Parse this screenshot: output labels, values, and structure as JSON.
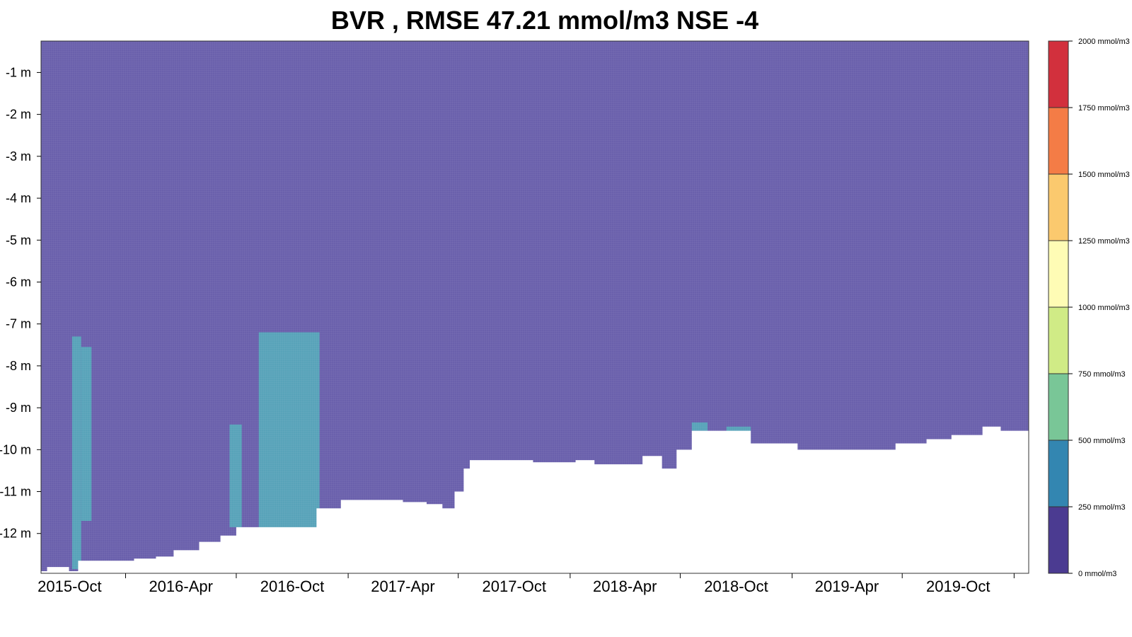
{
  "chart_data": {
    "type": "heatmap",
    "title": "BVR , RMSE 47.21 mmol/m3 NSE -4",
    "xlabel": "",
    "ylabel": "",
    "x_ticks": [
      "2015-Oct",
      "2016-Apr",
      "2016-Oct",
      "2017-Apr",
      "2017-Oct",
      "2018-Apr",
      "2018-Oct",
      "2019-Apr",
      "2019-Oct"
    ],
    "y_ticks": [
      "-1 m",
      "-2 m",
      "-3 m",
      "-4 m",
      "-5 m",
      "-6 m",
      "-7 m",
      "-8 m",
      "-9 m",
      "-10 m",
      "-11 m",
      "-12 m"
    ],
    "y_tick_values": [
      -1,
      -2,
      -3,
      -4,
      -5,
      -6,
      -7,
      -8,
      -9,
      -10,
      -11,
      -12
    ],
    "ylim": [
      -12.95,
      -0.25
    ],
    "xlim": [
      "2015-08-15",
      "2020-01-25"
    ],
    "colorbar": {
      "levels": [
        {
          "label": "0 mmol/m3",
          "color": "#4b3b91"
        },
        {
          "label": "250 mmol/m3",
          "color": "#3386b1"
        },
        {
          "label": "500 mmol/m3",
          "color": "#79c697"
        },
        {
          "label": "750 mmol/m3",
          "color": "#d0eb86"
        },
        {
          "label": "1000 mmol/m3",
          "color": "#fefcb5"
        },
        {
          "label": "1250 mmol/m3",
          "color": "#fbc96e"
        },
        {
          "label": "1500 mmol/m3",
          "color": "#f47c46"
        },
        {
          "label": "1750 mmol/m3",
          "color": "#d2303d"
        },
        {
          "label": "2000 mmol/m3",
          "color": ""
        }
      ]
    },
    "background_color": "#6a60ac",
    "patch_color": "#58a3b9",
    "bottom_depth_profile": [
      {
        "date": "2015-08-15",
        "depth": -12.9
      },
      {
        "date": "2015-08-25",
        "depth": -12.8
      },
      {
        "date": "2015-09-30",
        "depth": -12.9
      },
      {
        "date": "2015-10-15",
        "depth": -12.65
      },
      {
        "date": "2015-12-01",
        "depth": -12.65
      },
      {
        "date": "2016-01-15",
        "depth": -12.6
      },
      {
        "date": "2016-02-20",
        "depth": -12.55
      },
      {
        "date": "2016-03-20",
        "depth": -12.4
      },
      {
        "date": "2016-05-01",
        "depth": -12.2
      },
      {
        "date": "2016-06-05",
        "depth": -12.05
      },
      {
        "date": "2016-07-01",
        "depth": -11.85
      },
      {
        "date": "2016-10-15",
        "depth": -11.85
      },
      {
        "date": "2016-11-10",
        "depth": -11.4
      },
      {
        "date": "2016-12-20",
        "depth": -11.2
      },
      {
        "date": "2017-04-01",
        "depth": -11.25
      },
      {
        "date": "2017-05-10",
        "depth": -11.3
      },
      {
        "date": "2017-06-05",
        "depth": -11.4
      },
      {
        "date": "2017-06-25",
        "depth": -11.0
      },
      {
        "date": "2017-07-10",
        "depth": -10.45
      },
      {
        "date": "2017-07-20",
        "depth": -10.25
      },
      {
        "date": "2017-10-10",
        "depth": -10.25
      },
      {
        "date": "2017-11-01",
        "depth": -10.3
      },
      {
        "date": "2018-01-10",
        "depth": -10.25
      },
      {
        "date": "2018-02-10",
        "depth": -10.35
      },
      {
        "date": "2018-04-10",
        "depth": -10.35
      },
      {
        "date": "2018-04-30",
        "depth": -10.15
      },
      {
        "date": "2018-06-01",
        "depth": -10.45
      },
      {
        "date": "2018-06-25",
        "depth": -10.0
      },
      {
        "date": "2018-07-20",
        "depth": -9.55
      },
      {
        "date": "2018-09-20",
        "depth": -9.55
      },
      {
        "date": "2018-10-25",
        "depth": -9.85
      },
      {
        "date": "2019-01-10",
        "depth": -10.0
      },
      {
        "date": "2019-05-20",
        "depth": -10.0
      },
      {
        "date": "2019-06-20",
        "depth": -9.85
      },
      {
        "date": "2019-08-10",
        "depth": -9.75
      },
      {
        "date": "2019-09-20",
        "depth": -9.65
      },
      {
        "date": "2019-11-10",
        "depth": -9.45
      },
      {
        "date": "2019-12-10",
        "depth": -9.55
      },
      {
        "date": "2020-01-25",
        "depth": -9.6
      }
    ],
    "higher_concentration_patches": [
      {
        "start": "2015-10-05",
        "end": "2015-10-20",
        "top_depth": -7.3,
        "bottom_depth": -12.85
      },
      {
        "start": "2015-10-20",
        "end": "2015-11-06",
        "top_depth": -7.55,
        "bottom_depth": -11.7
      },
      {
        "start": "2016-06-20",
        "end": "2016-07-10",
        "top_depth": -9.4,
        "bottom_depth": -11.85
      },
      {
        "start": "2016-08-07",
        "end": "2016-11-15",
        "top_depth": -7.2,
        "bottom_depth": -12.0
      },
      {
        "start": "2018-07-20",
        "end": "2018-08-15",
        "top_depth": -9.35,
        "bottom_depth": -9.55
      },
      {
        "start": "2018-09-15",
        "end": "2018-10-25",
        "top_depth": -9.45,
        "bottom_depth": -9.85
      }
    ]
  }
}
